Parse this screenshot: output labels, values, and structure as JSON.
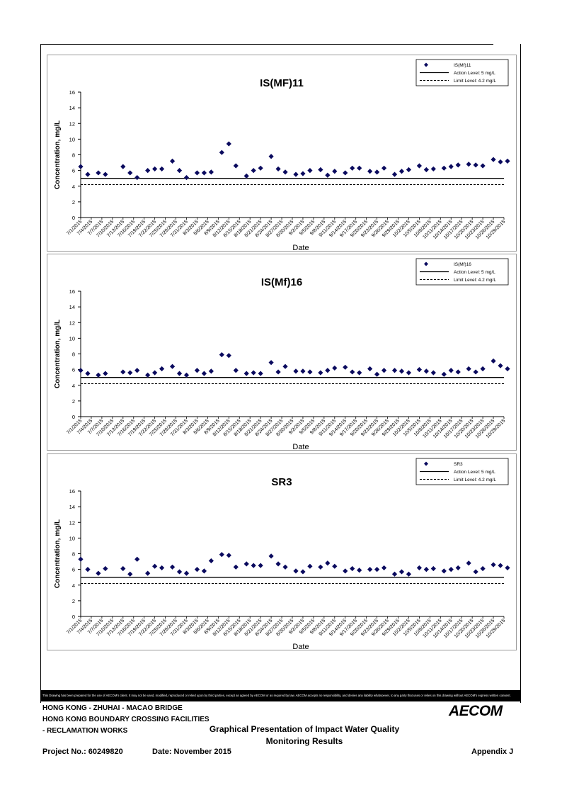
{
  "charts": [
    {
      "type": "scatter",
      "title": "IS(MF)11",
      "xlabel": "Date",
      "ylabel": "Concentration, mg/L",
      "ylim": [
        0,
        16
      ],
      "yticks": [
        0,
        2,
        4,
        6,
        8,
        10,
        12,
        14,
        16
      ],
      "legend": [
        "IS(Mf)11",
        "Action Level: 5 mg/L",
        "Limit Level: 4.2 mg/L"
      ],
      "action_level": 5,
      "limit_level": 4.2,
      "legend_position": "top-right",
      "x_tick_labels": [
        "7/1/2015",
        "7/4/2015",
        "7/7/2015",
        "7/10/2015",
        "7/13/2015",
        "7/16/2015",
        "7/19/2015",
        "7/22/2015",
        "7/25/2015",
        "7/28/2015",
        "7/31/2015",
        "8/3/2015",
        "8/6/2015",
        "8/9/2015",
        "8/12/2015",
        "8/15/2015",
        "8/18/2015",
        "8/21/2015",
        "8/24/2015",
        "8/27/2015",
        "8/30/2015",
        "9/2/2015",
        "9/5/2015",
        "9/8/2015",
        "9/11/2015",
        "9/14/2015",
        "9/17/2015",
        "9/20/2015",
        "9/23/2015",
        "9/26/2015",
        "9/29/2015",
        "10/2/2015",
        "10/5/2015",
        "10/8/2015",
        "10/11/2015",
        "10/14/2015",
        "10/17/2015",
        "10/20/2015",
        "10/23/2015",
        "10/26/2015",
        "10/29/2015"
      ],
      "dates": [
        "7/1/2015",
        "7/3/2015",
        "7/6/2015",
        "7/8/2015",
        "7/13/2015",
        "7/15/2015",
        "7/17/2015",
        "7/20/2015",
        "7/22/2015",
        "7/24/2015",
        "7/27/2015",
        "7/29/2015",
        "7/31/2015",
        "8/3/2015",
        "8/5/2015",
        "8/7/2015",
        "8/10/2015",
        "8/12/2015",
        "8/14/2015",
        "8/17/2015",
        "8/19/2015",
        "8/21/2015",
        "8/24/2015",
        "8/26/2015",
        "8/28/2015",
        "8/31/2015",
        "9/2/2015",
        "9/4/2015",
        "9/7/2015",
        "9/9/2015",
        "9/11/2015",
        "9/14/2015",
        "9/16/2015",
        "9/18/2015",
        "9/21/2015",
        "9/23/2015",
        "9/25/2015",
        "9/28/2015",
        "9/30/2015",
        "10/2/2015",
        "10/5/2015",
        "10/7/2015",
        "10/9/2015",
        "10/12/2015",
        "10/14/2015",
        "10/16/2015",
        "10/19/2015",
        "10/21/2015",
        "10/23/2015",
        "10/26/2015",
        "10/28/2015",
        "10/30/2015"
      ],
      "values": [
        6.5,
        5.5,
        5.7,
        5.5,
        6.5,
        5.7,
        5.1,
        6.0,
        6.2,
        6.2,
        7.2,
        6.0,
        5.1,
        5.7,
        5.7,
        5.8,
        8.3,
        9.4,
        6.6,
        5.3,
        6.0,
        6.3,
        7.8,
        6.2,
        5.8,
        5.5,
        5.6,
        6.0,
        6.1,
        5.4,
        5.9,
        5.7,
        6.3,
        6.3,
        5.9,
        5.8,
        6.3,
        5.5,
        5.9,
        6.1,
        6.6,
        6.1,
        6.2,
        6.3,
        6.5,
        6.7,
        6.8,
        6.7,
        6.6,
        7.4,
        7.1,
        7.2
      ]
    },
    {
      "type": "scatter",
      "title": "IS(Mf)16",
      "xlabel": "Date",
      "ylabel": "Concentration, mg/L",
      "ylim": [
        0,
        16
      ],
      "yticks": [
        0,
        2,
        4,
        6,
        8,
        10,
        12,
        14,
        16
      ],
      "legend": [
        "IS(Mf)16",
        "Action Level: 5 mg/L",
        "Limit Level: 4.2 mg/L"
      ],
      "action_level": 5,
      "limit_level": 4.2,
      "legend_position": "top-right",
      "x_tick_labels": [
        "7/1/2015",
        "7/4/2015",
        "7/7/2015",
        "7/10/2015",
        "7/13/2015",
        "7/16/2015",
        "7/19/2015",
        "7/22/2015",
        "7/25/2015",
        "7/28/2015",
        "7/31/2015",
        "8/3/2015",
        "8/6/2015",
        "8/9/2015",
        "8/12/2015",
        "8/15/2015",
        "8/18/2015",
        "8/21/2015",
        "8/24/2015",
        "8/27/2015",
        "8/30/2015",
        "9/2/2015",
        "9/5/2015",
        "9/8/2015",
        "9/11/2015",
        "9/14/2015",
        "9/17/2015",
        "9/20/2015",
        "9/23/2015",
        "9/26/2015",
        "9/29/2015",
        "10/2/2015",
        "10/5/2015",
        "10/8/2015",
        "10/11/2015",
        "10/14/2015",
        "10/17/2015",
        "10/20/2015",
        "10/23/2015",
        "10/26/2015",
        "10/29/2015"
      ],
      "dates": [
        "7/1/2015",
        "7/3/2015",
        "7/6/2015",
        "7/8/2015",
        "7/13/2015",
        "7/15/2015",
        "7/17/2015",
        "7/20/2015",
        "7/22/2015",
        "7/24/2015",
        "7/27/2015",
        "7/29/2015",
        "7/31/2015",
        "8/3/2015",
        "8/5/2015",
        "8/7/2015",
        "8/10/2015",
        "8/12/2015",
        "8/14/2015",
        "8/17/2015",
        "8/19/2015",
        "8/21/2015",
        "8/24/2015",
        "8/26/2015",
        "8/28/2015",
        "8/31/2015",
        "9/2/2015",
        "9/4/2015",
        "9/7/2015",
        "9/9/2015",
        "9/11/2015",
        "9/14/2015",
        "9/16/2015",
        "9/18/2015",
        "9/21/2015",
        "9/23/2015",
        "9/25/2015",
        "9/28/2015",
        "9/30/2015",
        "10/2/2015",
        "10/5/2015",
        "10/7/2015",
        "10/9/2015",
        "10/12/2015",
        "10/14/2015",
        "10/16/2015",
        "10/19/2015",
        "10/21/2015",
        "10/23/2015",
        "10/26/2015",
        "10/28/2015",
        "10/30/2015"
      ],
      "values": [
        5.9,
        5.5,
        5.3,
        5.5,
        5.7,
        5.6,
        5.9,
        5.3,
        5.6,
        6.1,
        6.4,
        5.5,
        5.3,
        5.9,
        5.5,
        5.8,
        7.9,
        7.8,
        5.9,
        5.5,
        5.6,
        5.5,
        6.9,
        5.7,
        6.4,
        5.8,
        5.8,
        5.7,
        5.6,
        5.9,
        6.2,
        6.3,
        5.7,
        5.6,
        6.1,
        5.4,
        5.9,
        5.9,
        5.8,
        5.6,
        6.0,
        5.8,
        5.6,
        5.4,
        5.9,
        5.7,
        6.1,
        5.7,
        6.1,
        7.1,
        6.5,
        6.1
      ]
    },
    {
      "type": "scatter",
      "title": "SR3",
      "xlabel": "Date",
      "ylabel": "Concentration, mg/L",
      "ylim": [
        0,
        16
      ],
      "yticks": [
        0,
        2,
        4,
        6,
        8,
        10,
        12,
        14,
        16
      ],
      "legend": [
        "SR3",
        "Action Level: 5 mg/L",
        "Limit Level: 4.2 mg/L"
      ],
      "action_level": 5,
      "limit_level": 4.2,
      "legend_position": "top-right",
      "x_tick_labels": [
        "7/1/2015",
        "7/4/2015",
        "7/7/2015",
        "7/10/2015",
        "7/13/2015",
        "7/16/2015",
        "7/19/2015",
        "7/22/2015",
        "7/25/2015",
        "7/28/2015",
        "7/31/2015",
        "8/3/2015",
        "8/6/2015",
        "8/9/2015",
        "8/12/2015",
        "8/15/2015",
        "8/18/2015",
        "8/21/2015",
        "8/24/2015",
        "8/27/2015",
        "8/30/2015",
        "9/2/2015",
        "9/5/2015",
        "9/8/2015",
        "9/11/2015",
        "9/14/2015",
        "9/17/2015",
        "9/20/2015",
        "9/23/2015",
        "9/26/2015",
        "9/29/2015",
        "10/2/2015",
        "10/5/2015",
        "10/8/2015",
        "10/11/2015",
        "10/14/2015",
        "10/17/2015",
        "10/20/2015",
        "10/23/2015",
        "10/26/2015",
        "10/29/2015"
      ],
      "dates": [
        "7/1/2015",
        "7/3/2015",
        "7/6/2015",
        "7/8/2015",
        "7/13/2015",
        "7/15/2015",
        "7/17/2015",
        "7/20/2015",
        "7/22/2015",
        "7/24/2015",
        "7/27/2015",
        "7/29/2015",
        "7/31/2015",
        "8/3/2015",
        "8/5/2015",
        "8/7/2015",
        "8/10/2015",
        "8/12/2015",
        "8/14/2015",
        "8/17/2015",
        "8/19/2015",
        "8/21/2015",
        "8/24/2015",
        "8/26/2015",
        "8/28/2015",
        "8/31/2015",
        "9/2/2015",
        "9/4/2015",
        "9/7/2015",
        "9/9/2015",
        "9/11/2015",
        "9/14/2015",
        "9/16/2015",
        "9/18/2015",
        "9/21/2015",
        "9/23/2015",
        "9/25/2015",
        "9/28/2015",
        "9/30/2015",
        "10/2/2015",
        "10/5/2015",
        "10/7/2015",
        "10/9/2015",
        "10/12/2015",
        "10/14/2015",
        "10/16/2015",
        "10/19/2015",
        "10/21/2015",
        "10/23/2015",
        "10/26/2015",
        "10/28/2015",
        "10/30/2015"
      ],
      "values": [
        7.3,
        6.0,
        5.5,
        6.1,
        6.1,
        5.4,
        7.3,
        5.5,
        6.4,
        6.2,
        6.3,
        5.7,
        5.5,
        6.0,
        5.8,
        7.1,
        7.9,
        7.8,
        6.3,
        6.7,
        6.5,
        6.5,
        7.7,
        6.7,
        6.3,
        5.8,
        5.7,
        6.4,
        6.3,
        6.8,
        6.4,
        5.8,
        6.1,
        5.9,
        6.0,
        6.0,
        6.2,
        5.4,
        5.7,
        5.4,
        6.2,
        6.0,
        6.1,
        5.8,
        6.0,
        6.2,
        6.8,
        5.7,
        6.1,
        6.6,
        6.5,
        6.2
      ]
    }
  ],
  "colors": {
    "marker": "#0a0a5e",
    "axis": "#000000",
    "panel_border": "#9a9a9a"
  },
  "disclaimer": "This Drawing has been prepared for the use of AECOM's client. It may not be used, modified, reproduced or relied upon by third parties, except as agreed by AECOM or as required by law. AECOM accepts no responsibility, and denies any liability whatsoever, to any party that uses or relies on this drawing without AECOM's express written consent.",
  "footer": {
    "line1": "HONG KONG - ZHUHAI - MACAO BRIDGE",
    "line2": "HONG KONG BOUNDARY CROSSING FACILITIES",
    "line3": "- RECLAMATION WORKS",
    "title_line1": "Graphical Presentation of Impact Water Quality",
    "title_line2": "Monitoring Results",
    "project": "Project No.: 60249820",
    "date": "Date: November 2015",
    "appendix": "Appendix J",
    "logo": "AECOM"
  }
}
